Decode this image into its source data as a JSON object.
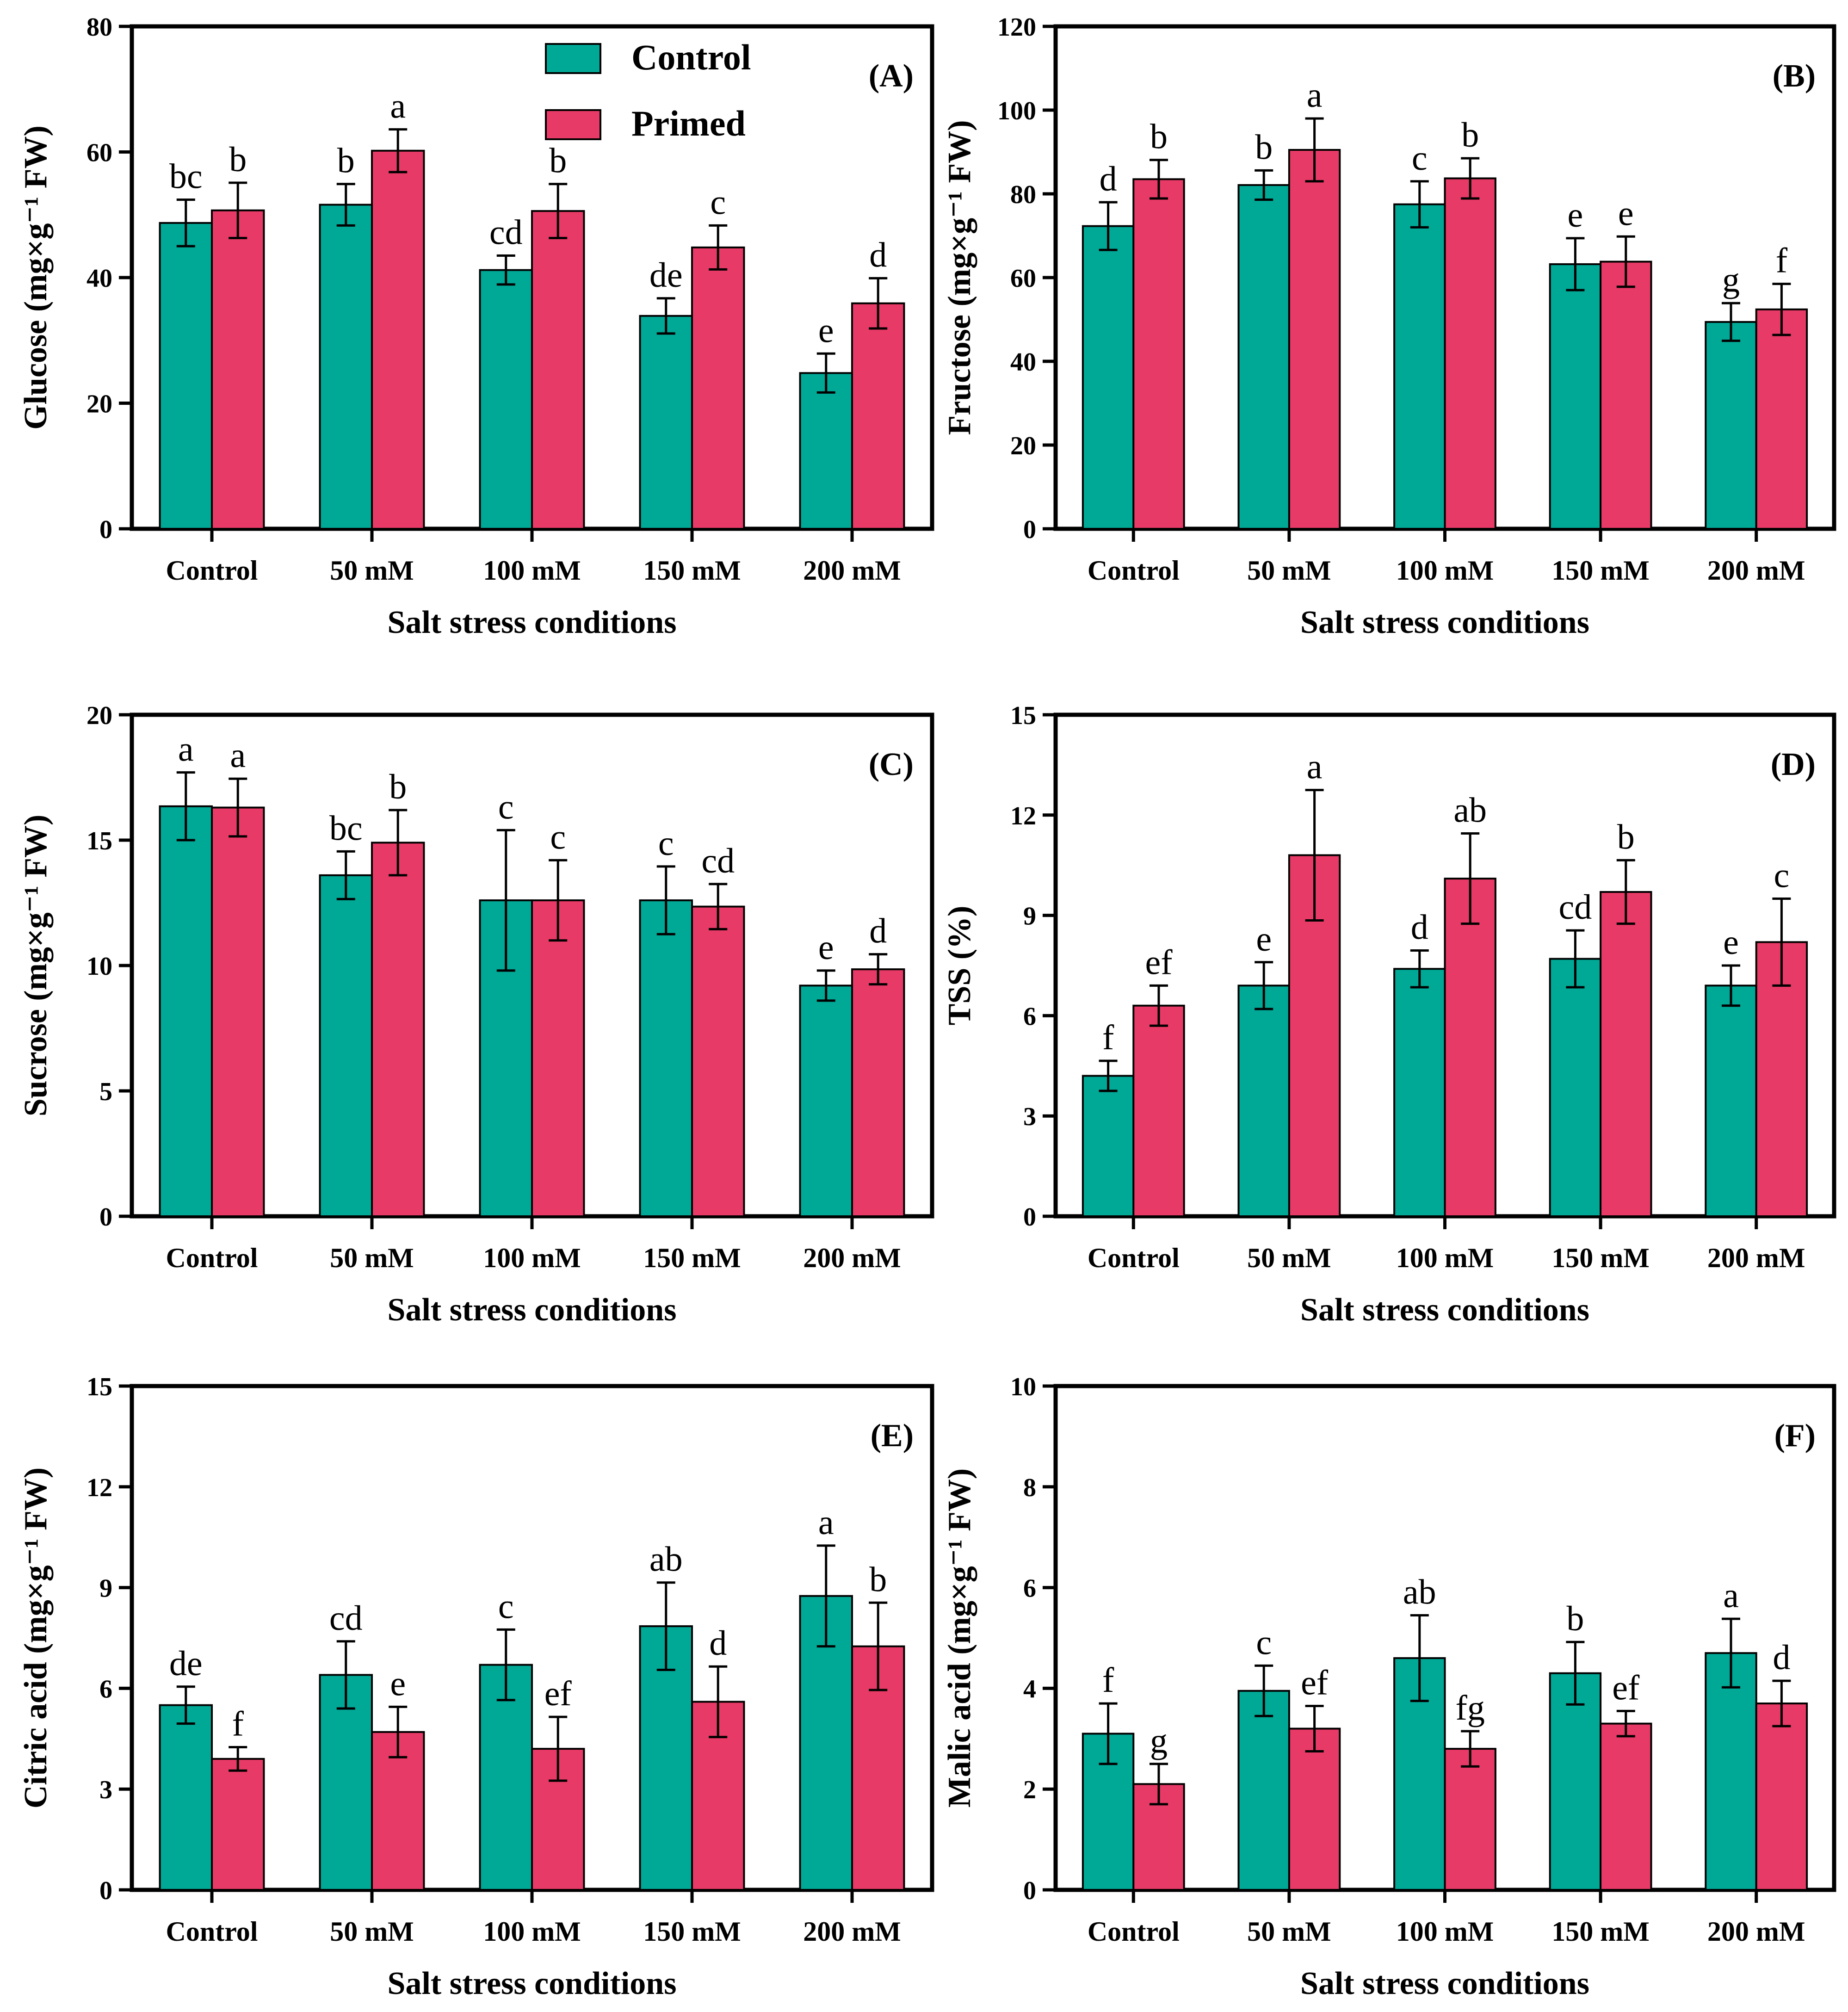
{
  "colors": {
    "control": "#00a896",
    "primed": "#e83a66",
    "axis": "#000000"
  },
  "legend": [
    {
      "key": "control",
      "label": "Control"
    },
    {
      "key": "primed",
      "label": "Primed"
    }
  ],
  "chart_data": [
    {
      "panel": "(A)",
      "type": "bar",
      "ylabel": "Glucose (mg×g⁻¹ FW)",
      "xlabel": "Salt stress conditions",
      "categories": [
        "Control",
        "50 mM",
        "100 mM",
        "150 mM",
        "200 mM"
      ],
      "ylim": [
        0,
        80
      ],
      "yticks": [
        "0",
        "20",
        "40",
        "60",
        "80"
      ],
      "series": [
        {
          "name": "Control",
          "values": [
            48.7,
            51.6,
            41.2,
            33.9,
            24.8
          ],
          "errors": [
            3.7,
            3.3,
            2.3,
            2.8,
            3.1
          ],
          "letters": [
            "bc",
            "b",
            "cd",
            "de",
            "e"
          ]
        },
        {
          "name": "Primed",
          "values": [
            50.7,
            60.2,
            50.6,
            44.8,
            35.9
          ],
          "errors": [
            4.4,
            3.4,
            4.3,
            3.5,
            4.0
          ],
          "letters": [
            "b",
            "a",
            "b",
            "c",
            "d"
          ]
        }
      ]
    },
    {
      "panel": "(B)",
      "type": "bar",
      "ylabel": "Fructose (mg×g⁻¹ FW)",
      "xlabel": "Salt stress conditions",
      "categories": [
        "Control",
        "50 mM",
        "100 mM",
        "150 mM",
        "200 mM"
      ],
      "ylim": [
        0,
        120
      ],
      "yticks": [
        "0",
        "20",
        "40",
        "60",
        "80",
        "100",
        "120"
      ],
      "series": [
        {
          "name": "Control",
          "values": [
            72.3,
            82.1,
            77.5,
            63.2,
            49.4
          ],
          "errors": [
            5.7,
            3.5,
            5.5,
            6.2,
            4.5
          ],
          "letters": [
            "d",
            "b",
            "c",
            "e",
            "g"
          ]
        },
        {
          "name": "Primed",
          "values": [
            83.5,
            90.5,
            83.7,
            63.8,
            52.4
          ],
          "errors": [
            4.6,
            7.5,
            4.8,
            6.0,
            6.1
          ],
          "letters": [
            "b",
            "a",
            "b",
            "e",
            "f"
          ]
        }
      ]
    },
    {
      "panel": "(C)",
      "type": "bar",
      "ylabel": "Sucrose (mg×g⁻¹  FW)",
      "xlabel": "Salt stress conditions",
      "categories": [
        "Control",
        "50 mM",
        "100 mM",
        "150 mM",
        "200 mM"
      ],
      "ylim": [
        0,
        20
      ],
      "yticks": [
        "0",
        "5",
        "10",
        "15",
        "20"
      ],
      "series": [
        {
          "name": "Control",
          "values": [
            16.35,
            13.6,
            12.6,
            12.6,
            9.2
          ],
          "errors": [
            1.35,
            0.95,
            2.8,
            1.35,
            0.6
          ],
          "letters": [
            "a",
            "bc",
            "c",
            "c",
            "e"
          ]
        },
        {
          "name": "Primed",
          "values": [
            16.3,
            14.9,
            12.6,
            12.35,
            9.85
          ],
          "errors": [
            1.15,
            1.3,
            1.6,
            0.9,
            0.6
          ],
          "letters": [
            "a",
            "b",
            "c",
            "cd",
            "d"
          ]
        }
      ]
    },
    {
      "panel": "(D)",
      "type": "bar",
      "ylabel": "TSS  (%)",
      "xlabel": "Salt stress conditions",
      "categories": [
        "Control",
        "50 mM",
        "100 mM",
        "150 mM",
        "200 mM"
      ],
      "ylim": [
        0,
        15
      ],
      "yticks": [
        "0",
        "3",
        "6",
        "9",
        "12",
        "15"
      ],
      "series": [
        {
          "name": "Control",
          "values": [
            4.2,
            6.9,
            7.4,
            7.7,
            6.9
          ],
          "errors": [
            0.45,
            0.7,
            0.55,
            0.85,
            0.6
          ],
          "letters": [
            "f",
            "e",
            "d",
            "cd",
            "e"
          ]
        },
        {
          "name": "Primed",
          "values": [
            6.3,
            10.8,
            10.1,
            9.7,
            8.2
          ],
          "errors": [
            0.6,
            1.95,
            1.35,
            0.95,
            1.3
          ],
          "letters": [
            "ef",
            "a",
            "ab",
            "b",
            "c"
          ]
        }
      ]
    },
    {
      "panel": "(E)",
      "type": "bar",
      "ylabel": "Citric acid (mg×g⁻¹ FW)",
      "xlabel": "Salt stress conditions",
      "categories": [
        "Control",
        "50 mM",
        "100 mM",
        "150 mM",
        "200 mM"
      ],
      "ylim": [
        0,
        15
      ],
      "yticks": [
        "0",
        "3",
        "6",
        "9",
        "12",
        "15"
      ],
      "series": [
        {
          "name": "Control",
          "values": [
            5.5,
            6.4,
            6.7,
            7.85,
            8.75
          ],
          "errors": [
            0.55,
            1.0,
            1.05,
            1.3,
            1.5
          ],
          "letters": [
            "de",
            "cd",
            "c",
            "ab",
            "a"
          ]
        },
        {
          "name": "Primed",
          "values": [
            3.9,
            4.7,
            4.2,
            5.6,
            7.25
          ],
          "errors": [
            0.35,
            0.75,
            0.95,
            1.05,
            1.3
          ],
          "letters": [
            "f",
            "e",
            "ef",
            "d",
            "b"
          ]
        }
      ]
    },
    {
      "panel": "(F)",
      "type": "bar",
      "ylabel": "Malic acid (mg×g⁻¹ FW)",
      "xlabel": "Salt stress conditions",
      "categories": [
        "Control",
        "50 mM",
        "100 mM",
        "150 mM",
        "200 mM"
      ],
      "ylim": [
        0,
        10
      ],
      "yticks": [
        "0",
        "2",
        "4",
        "6",
        "8",
        "10"
      ],
      "series": [
        {
          "name": "Control",
          "values": [
            3.1,
            3.95,
            4.6,
            4.3,
            4.7
          ],
          "errors": [
            0.6,
            0.5,
            0.85,
            0.62,
            0.68
          ],
          "letters": [
            "f",
            "c",
            "ab",
            "b",
            "a"
          ]
        },
        {
          "name": "Primed",
          "values": [
            2.1,
            3.2,
            2.8,
            3.3,
            3.7
          ],
          "errors": [
            0.4,
            0.45,
            0.35,
            0.25,
            0.45
          ],
          "letters": [
            "g",
            "ef",
            "fg",
            "ef",
            "d"
          ]
        }
      ]
    }
  ]
}
